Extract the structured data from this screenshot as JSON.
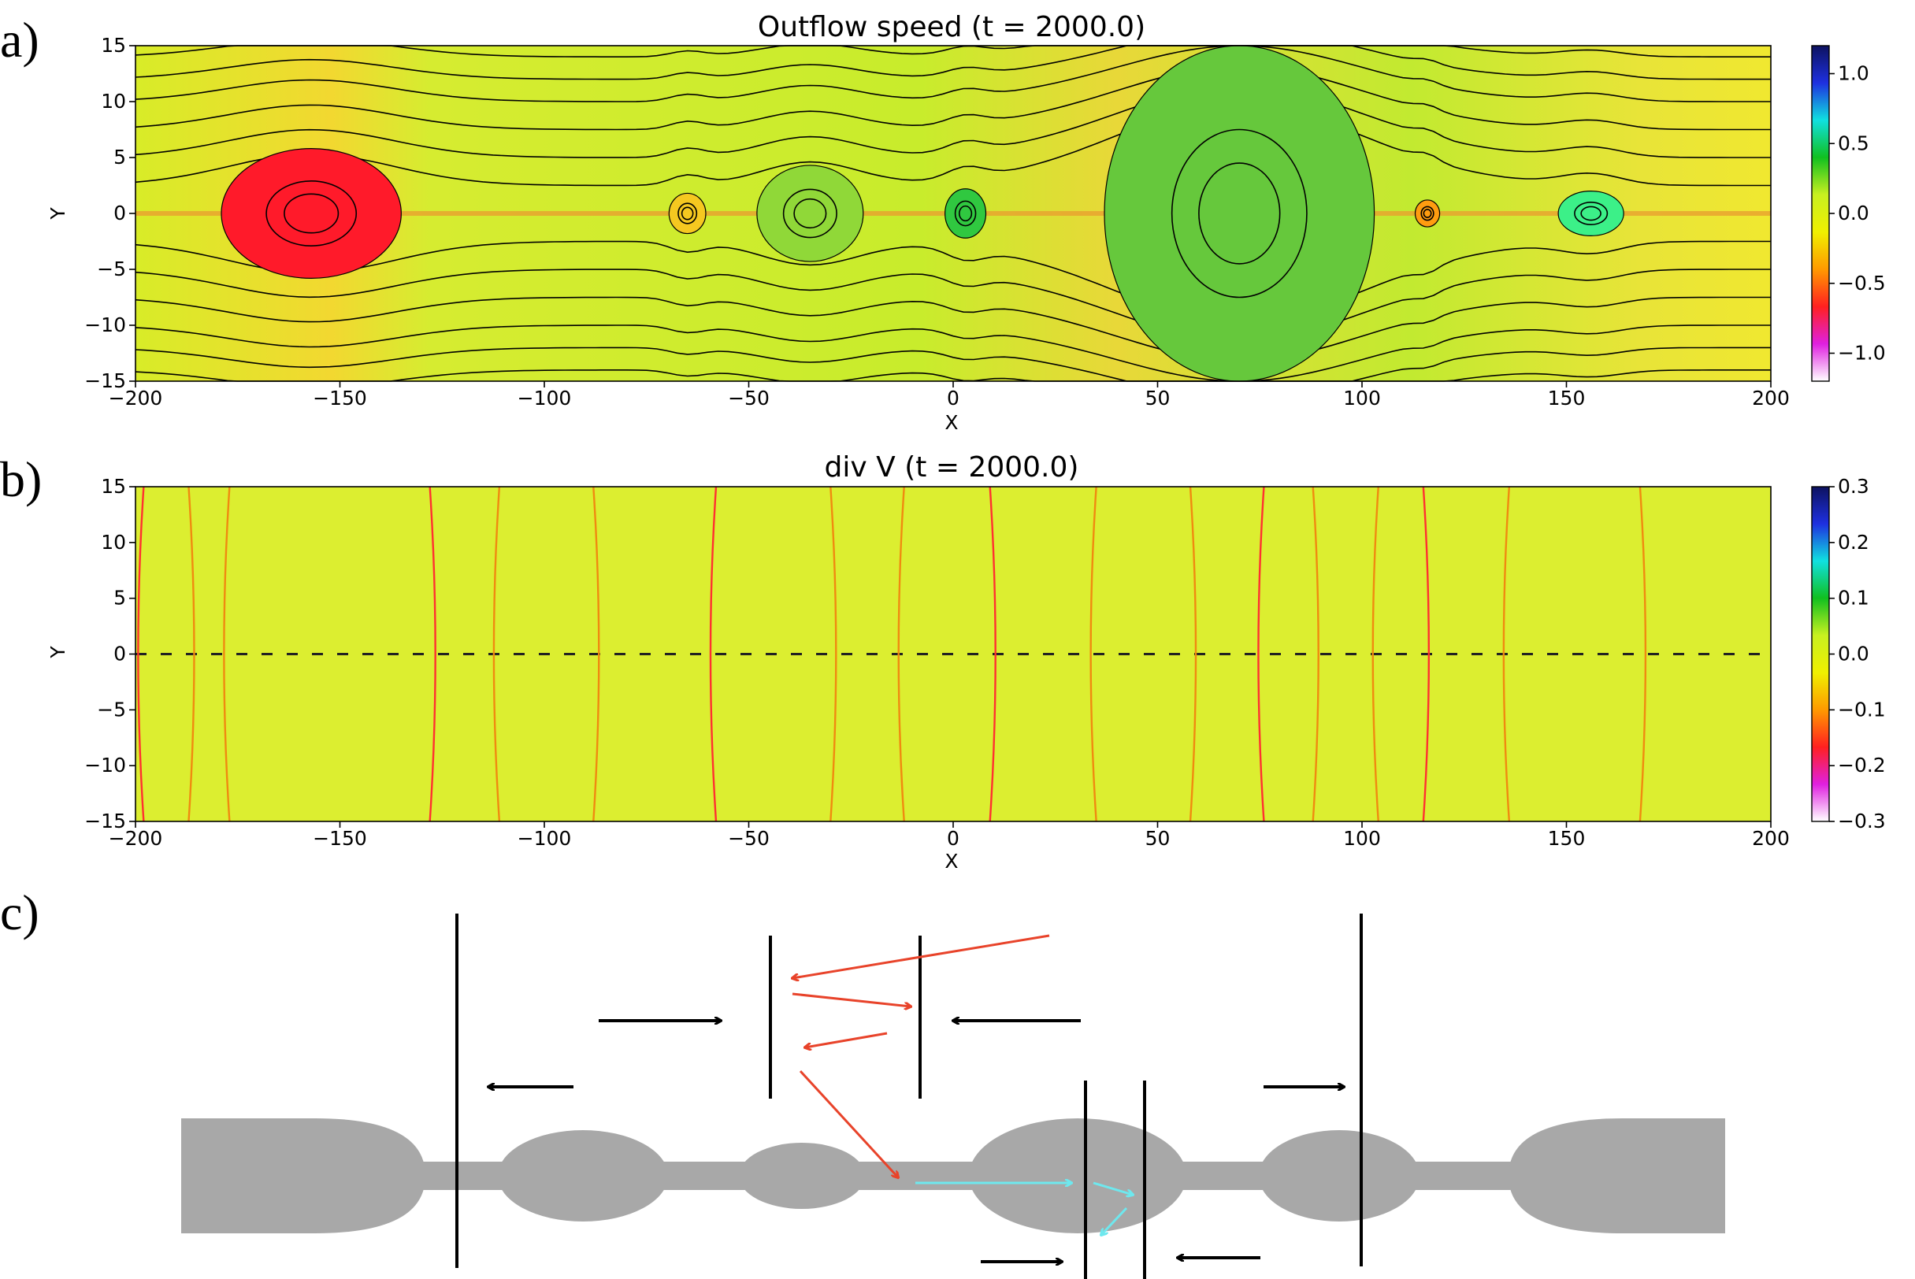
{
  "panel_labels": [
    "a)",
    "b)",
    "c)"
  ],
  "chart_data": [
    {
      "type": "heatmap",
      "title": "Outflow speed (t = 2000.0)",
      "xlabel": "X",
      "ylabel": "Y",
      "xlim": [
        -200,
        200
      ],
      "ylim": [
        -15,
        15
      ],
      "xticks": [
        -200,
        -150,
        -100,
        -50,
        0,
        50,
        100,
        150,
        200
      ],
      "yticks": [
        -15,
        -10,
        -5,
        0,
        5,
        10,
        15
      ],
      "colorbar": {
        "range": [
          -1.2,
          1.2
        ],
        "ticks": [
          1.0,
          0.5,
          0.0,
          -0.5,
          -1.0
        ],
        "stops": [
          "#0d1260",
          "#1e30e0",
          "#10e0e0",
          "#10c020",
          "#c8f020",
          "#f0f000",
          "#ff9900",
          "#ff2020",
          "#e020e0",
          "#ffffff"
        ]
      },
      "plasmoids": [
        {
          "x": -157,
          "half_width": 22,
          "half_height": 5.8,
          "fill": "#ff1a2a"
        },
        {
          "x": -65,
          "half_width": 4.5,
          "half_height": 1.8,
          "fill": "#f6c820"
        },
        {
          "x": -35,
          "half_width": 13,
          "half_height": 4.3,
          "fill": "#90d838"
        },
        {
          "x": 3,
          "half_width": 5,
          "half_height": 2.2,
          "fill": "#30c840"
        },
        {
          "x": 70,
          "half_width": 33,
          "half_height": 15,
          "fill": "#66c83c"
        },
        {
          "x": 116,
          "half_width": 3,
          "half_height": 1.2,
          "fill": "#ff9c10"
        },
        {
          "x": 156,
          "half_width": 8,
          "half_height": 2,
          "fill": "#3cf088"
        }
      ]
    },
    {
      "type": "heatmap",
      "title": "div V (t = 2000.0)",
      "xlabel": "X",
      "ylabel": "Y",
      "xlim": [
        -200,
        200
      ],
      "ylim": [
        -15,
        15
      ],
      "xticks": [
        -200,
        -150,
        -100,
        -50,
        0,
        50,
        100,
        150,
        200
      ],
      "yticks": [
        -15,
        -10,
        -5,
        0,
        5,
        10,
        15
      ],
      "colorbar": {
        "range": [
          -0.3,
          0.3
        ],
        "ticks": [
          0.3,
          0.2,
          0.1,
          0.0,
          -0.1,
          -0.2,
          -0.3
        ],
        "stops": [
          "#0d1260",
          "#1e30e0",
          "#10e0e0",
          "#10c020",
          "#c8f020",
          "#f0f000",
          "#ff9900",
          "#ff2020",
          "#e020e0",
          "#ffffff"
        ]
      },
      "shock_x": [
        -198,
        -187,
        -177,
        -128,
        -111,
        -88,
        -58,
        -30,
        -12,
        9,
        35,
        58,
        76,
        88,
        104,
        115,
        136,
        168
      ]
    }
  ],
  "diagram": {
    "background_color": "#ffffff",
    "plasmoid_color": "#a8a8a8",
    "arrow_colors": {
      "black": "#000000",
      "red": "#e8432a",
      "cyan": "#6ee8ee"
    }
  }
}
